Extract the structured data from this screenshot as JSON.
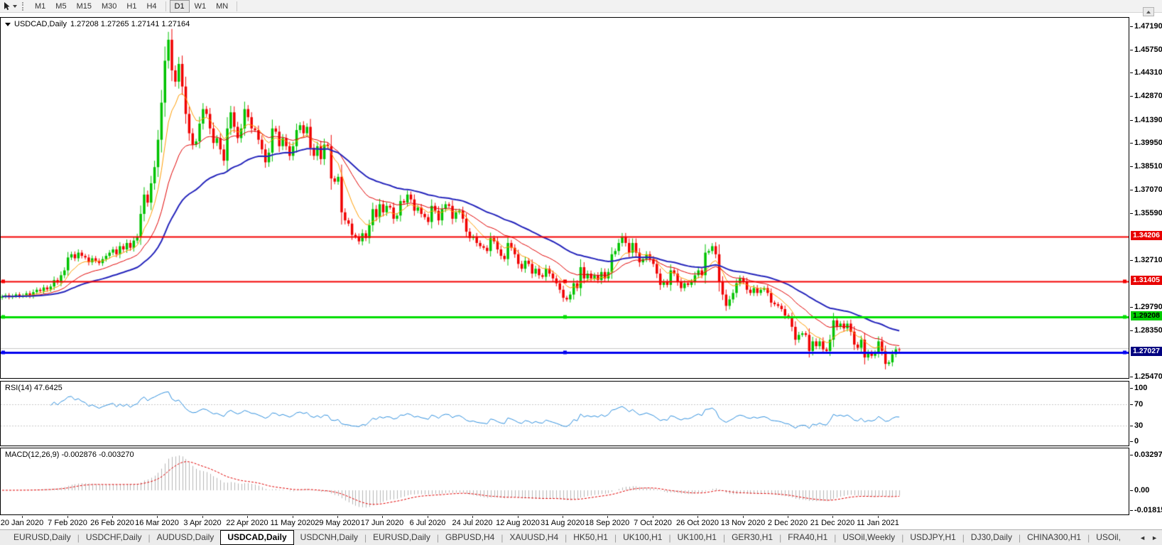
{
  "toolbar": {
    "cursor_tool_icon": "cursor-pointer",
    "timeframes": [
      "M1",
      "M5",
      "M15",
      "M30",
      "H1",
      "H4",
      "D1",
      "W1",
      "MN"
    ],
    "active_timeframe": "D1"
  },
  "chart": {
    "title": "USDCAD,Daily",
    "quote": "1.27208 1.27265 1.27141 1.27164",
    "price_axis_ticks": [
      "1.47190",
      "1.45750",
      "1.44310",
      "1.42870",
      "1.41390",
      "1.39950",
      "1.38510",
      "1.37070",
      "1.35590",
      "1.32710",
      "1.29790",
      "1.28350",
      "1.25470"
    ],
    "levels": [
      {
        "display": "1.34206",
        "value": 1.34206,
        "line_color": "#f40000",
        "chip_bg": "#e80000",
        "chip_text": "#ffffff",
        "width": 2,
        "handles": false
      },
      {
        "display": "1.31405",
        "value": 1.31405,
        "line_color": "#f40000",
        "chip_bg": "#e80000",
        "chip_text": "#ffffff",
        "width": 2,
        "handles": true
      },
      {
        "display": "1.29208",
        "value": 1.29208,
        "line_color": "#00dd00",
        "chip_bg": "#00cc00",
        "chip_text": "#000000",
        "width": 3,
        "handles": true
      },
      {
        "display": "1.27027",
        "value": 1.27027,
        "line_color": "#0000ee",
        "chip_bg": "#000080",
        "chip_text": "#ffffff",
        "width": 3,
        "handles": true
      }
    ],
    "bid_line": {
      "value": 1.2728,
      "color": "#c8c8c8"
    },
    "candle_up_color": "#00c300",
    "candle_down_color": "#f00000",
    "ma_lines": [
      {
        "name": "ma-fast",
        "period": 8,
        "color": "#ff9c00",
        "width": 1
      },
      {
        "name": "ma-medium",
        "period": 21,
        "color": "#e00000",
        "width": 1
      },
      {
        "name": "ma-slow",
        "period": 45,
        "color": "#2424bb",
        "width": 2
      }
    ],
    "rsi": {
      "display": "RSI(14) 47.6425",
      "line_color": "#2f8fdd",
      "level_lines": [
        70,
        30
      ],
      "axis_labels": [
        {
          "text": "100",
          "value": 100
        },
        {
          "text": "70",
          "value": 70
        },
        {
          "text": "30",
          "value": 30
        },
        {
          "text": "0",
          "value": 0
        }
      ]
    },
    "macd": {
      "display": "MACD(12,26,9) -0.002876 -0.003270",
      "hist_color": "#b4b4b4",
      "signal_color": "#e00000",
      "axis_labels": [
        {
          "text": "0.032972",
          "value": 0.032972
        },
        {
          "text": "0.00",
          "value": 0
        },
        {
          "text": "-0.018154",
          "value": -0.018154
        }
      ]
    }
  },
  "chart_data": {
    "type": "candlestick",
    "symbol": "USDCAD",
    "timeframe": "Daily",
    "last_quote": {
      "open": 1.27208,
      "high": 1.27265,
      "low": 1.27141,
      "close": 1.27164
    },
    "ylim": [
      1.2547,
      1.4719
    ],
    "support_resistance_levels": [
      1.34206,
      1.31405,
      1.29208,
      1.27027
    ],
    "x_tick_labels": [
      "20 Jan 2020",
      "7 Feb 2020",
      "26 Feb 2020",
      "16 Mar 2020",
      "3 Apr 2020",
      "22 Apr 2020",
      "11 May 2020",
      "29 May 2020",
      "17 Jun 2020",
      "6 Jul 2020",
      "24 Jul 2020",
      "12 Aug 2020",
      "31 Aug 2020",
      "18 Sep 2020",
      "7 Oct 2020",
      "26 Oct 2020",
      "13 Nov 2020",
      "2 Dec 2020",
      "21 Dec 2020",
      "11 Jan 2021"
    ],
    "first_tick_candle_index": 6,
    "candles_per_tick": 13,
    "first_open": 1.304,
    "closes": [
      1.3048,
      1.3056,
      1.3044,
      1.3052,
      1.3061,
      1.305,
      1.3055,
      1.3068,
      1.3052,
      1.3075,
      1.309,
      1.3082,
      1.3104,
      1.3092,
      1.311,
      1.315,
      1.3135,
      1.318,
      1.321,
      1.329,
      1.331,
      1.3285,
      1.332,
      1.33,
      1.329,
      1.326,
      1.3285,
      1.327,
      1.3255,
      1.328,
      1.33,
      1.332,
      1.334,
      1.331,
      1.336,
      1.334,
      1.338,
      1.335,
      1.3395,
      1.342,
      1.356,
      1.368,
      1.363,
      1.375,
      1.385,
      1.402,
      1.425,
      1.451,
      1.464,
      1.445,
      1.438,
      1.449,
      1.435,
      1.418,
      1.406,
      1.399,
      1.401,
      1.412,
      1.421,
      1.418,
      1.409,
      1.4,
      1.403,
      1.396,
      1.389,
      1.409,
      1.419,
      1.41,
      1.403,
      1.409,
      1.421,
      1.416,
      1.409,
      1.408,
      1.402,
      1.396,
      1.388,
      1.394,
      1.409,
      1.407,
      1.398,
      1.403,
      1.398,
      1.392,
      1.398,
      1.408,
      1.411,
      1.406,
      1.41,
      1.397,
      1.392,
      1.398,
      1.39,
      1.399,
      1.398,
      1.378,
      1.376,
      1.379,
      1.357,
      1.352,
      1.35,
      1.343,
      1.342,
      1.339,
      1.344,
      1.341,
      1.349,
      1.359,
      1.354,
      1.362,
      1.357,
      1.361,
      1.36,
      1.353,
      1.355,
      1.364,
      1.363,
      1.368,
      1.365,
      1.358,
      1.36,
      1.356,
      1.354,
      1.351,
      1.361,
      1.358,
      1.352,
      1.359,
      1.362,
      1.361,
      1.353,
      1.357,
      1.358,
      1.353,
      1.345,
      1.341,
      1.342,
      1.338,
      1.336,
      1.335,
      1.333,
      1.341,
      1.339,
      1.334,
      1.33,
      1.328,
      1.338,
      1.335,
      1.331,
      1.325,
      1.322,
      1.327,
      1.325,
      1.319,
      1.322,
      1.318,
      1.317,
      1.322,
      1.319,
      1.316,
      1.313,
      1.309,
      1.304,
      1.303,
      1.306,
      1.313,
      1.31,
      1.323,
      1.316,
      1.319,
      1.316,
      1.318,
      1.315,
      1.32,
      1.316,
      1.32,
      1.331,
      1.333,
      1.338,
      1.342,
      1.338,
      1.332,
      1.338,
      1.332,
      1.326,
      1.328,
      1.331,
      1.328,
      1.325,
      1.319,
      1.312,
      1.314,
      1.312,
      1.321,
      1.319,
      1.314,
      1.31,
      1.313,
      1.312,
      1.314,
      1.318,
      1.321,
      1.318,
      1.332,
      1.333,
      1.336,
      1.331,
      1.314,
      1.306,
      1.299,
      1.303,
      1.307,
      1.313,
      1.316,
      1.314,
      1.309,
      1.307,
      1.31,
      1.307,
      1.309,
      1.31,
      1.307,
      1.301,
      1.3,
      1.299,
      1.297,
      1.293,
      1.292,
      1.286,
      1.278,
      1.281,
      1.282,
      1.281,
      1.271,
      1.277,
      1.274,
      1.277,
      1.272,
      1.271,
      1.278,
      1.29,
      1.286,
      1.288,
      1.285,
      1.288,
      1.283,
      1.275,
      1.273,
      1.278,
      1.267,
      1.27,
      1.268,
      1.27,
      1.277,
      1.271,
      1.263,
      1.264,
      1.269,
      1.272,
      1.27164
    ]
  },
  "tabs": {
    "items": [
      "EURUSD,Daily",
      "USDCHF,Daily",
      "AUDUSD,Daily",
      "USDCAD,Daily",
      "USDCNH,Daily",
      "EURUSD,Daily",
      "GBPUSD,H4",
      "XAUUSD,H4",
      "HK50,H1",
      "UK100,H1",
      "UK100,H1",
      "GER30,H1",
      "FRA40,H1",
      "USOil,Weekly",
      "USDJPY,H1",
      "DJ30,Daily",
      "CHINA300,H1",
      "USOil,"
    ],
    "active_index": 3,
    "scroll_left_icon": "◄",
    "scroll_right_icon": "►"
  }
}
